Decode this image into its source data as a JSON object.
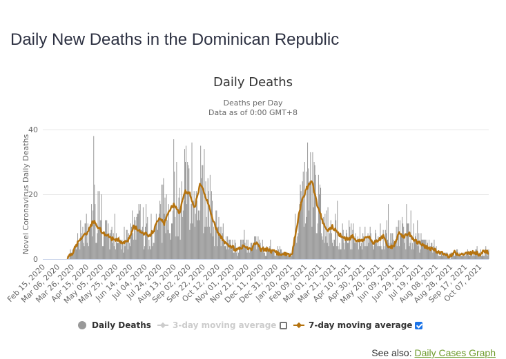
{
  "page": {
    "title": "Daily New Deaths in the Dominican Republic",
    "see_also_label": "See also:",
    "see_also_link": "Daily Cases Graph"
  },
  "legend": {
    "daily": "Daily Deaths",
    "ma3": "3-day moving average",
    "ma3_checked": false,
    "ma7": "7-day moving average",
    "ma7_checked": true
  },
  "colors": {
    "bars": "#999999",
    "ma7": "#b5730f",
    "ma3_disabled": "#cccccc",
    "grid": "#e6e6e6",
    "axis": "#ccd6eb",
    "link": "#6c9a2a",
    "checkbox": "#1a73e8"
  },
  "chart_data": {
    "type": "bar",
    "title": "Daily Deaths",
    "subtitle": "Deaths per Day",
    "subtitle2": "Data as of 0:00 GMT+8",
    "xlabel": "",
    "ylabel": "Novel Coronavirus Daily Deaths",
    "ylim": [
      0,
      40
    ],
    "yticks": [
      0,
      20,
      40
    ],
    "grid": true,
    "legend_position": "bottom",
    "start_date": "2020-02-15",
    "end_date": "2021-10-20",
    "xtick_labels": [
      "Feb 15, 2020",
      "Mar 06, 2020",
      "Mar 26, 2020",
      "Apr 15, 2020",
      "May 05, 2020",
      "May 25, 2020",
      "Jun 14, 2020",
      "Jul 04, 2020",
      "Jul 24, 2020",
      "Aug 13, 2020",
      "Sep 02, 2020",
      "Sep 22, 2020",
      "Oct 12, 2020",
      "Nov 01, 2020",
      "Nov 21, 2020",
      "Dec 11, 2020",
      "Dec 31, 2020",
      "Jan 20, 2021",
      "Feb 09, 2021",
      "Mar 01, 2021",
      "Mar 21, 2021",
      "Apr 10, 2021",
      "Apr 30, 2021",
      "May 20, 2021",
      "Jun 09, 2021",
      "Jun 29, 2021",
      "Jul 19, 2021",
      "Aug 08, 2021",
      "Aug 28, 2021",
      "Sep 17, 2021",
      "Oct 07, 2021"
    ],
    "series": [
      {
        "name": "7-day moving average (approx. weekly values)",
        "x_start": "2020-03-20",
        "step_days": 7,
        "values": [
          0.5,
          2,
          5,
          7,
          8,
          12,
          10,
          8,
          7,
          6,
          6,
          5,
          6,
          10,
          9,
          8,
          7,
          9,
          13,
          11,
          15,
          17,
          14,
          21,
          20,
          16,
          23,
          20,
          15,
          10,
          7,
          5,
          4,
          3,
          3.5,
          4,
          3,
          5,
          3,
          3,
          2.5,
          2,
          1.5,
          1.5,
          1,
          10,
          18,
          22,
          24,
          17,
          12,
          9,
          10,
          8,
          7,
          6,
          7,
          5.5,
          6,
          7,
          5,
          6,
          7,
          4,
          3.5,
          8,
          7,
          8,
          6,
          5,
          4,
          3.5,
          3,
          2,
          1.5,
          1,
          2,
          1.5,
          1.5,
          2,
          2,
          1.5,
          2.5,
          2
        ]
      },
      {
        "name": "Daily Deaths",
        "note": "daily bars; peaks ~38 (Apr 2020), ~36 (Sep 2020), ~30 (Feb 2021)"
      }
    ]
  }
}
